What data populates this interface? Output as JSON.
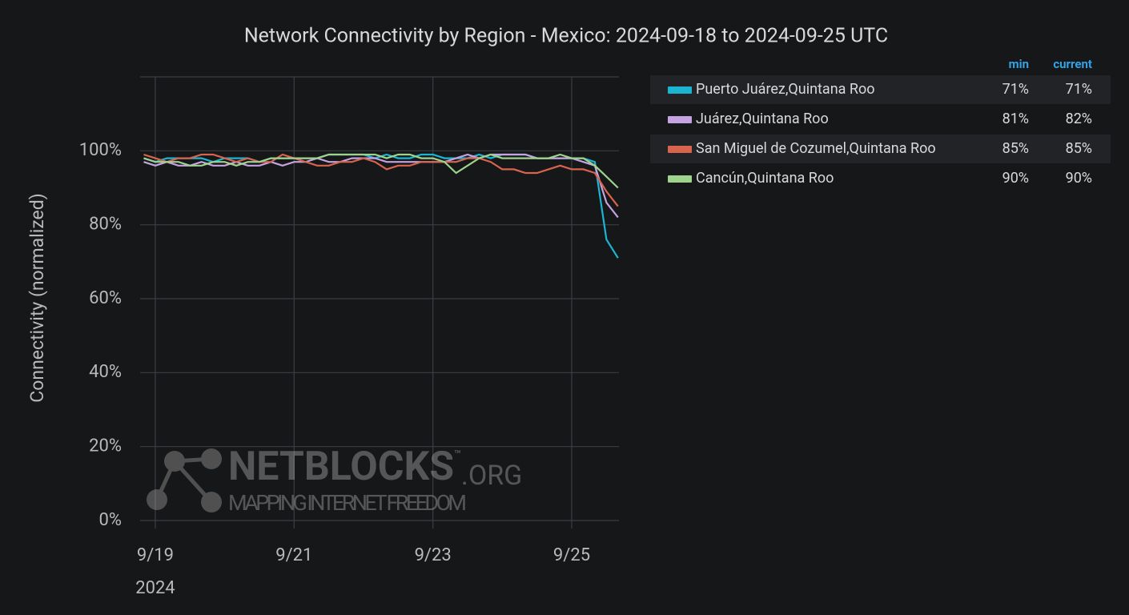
{
  "chart_data": {
    "type": "line",
    "title": "Network Connectivity by Region - Mexico: 2024-09-18 to 2024-09-25 UTC",
    "y_label": "Connectivity (normalized)",
    "x": [
      "2024-09-18T20:00",
      "2024-09-19T00:00",
      "2024-09-19T04:00",
      "2024-09-19T08:00",
      "2024-09-19T12:00",
      "2024-09-19T16:00",
      "2024-09-19T20:00",
      "2024-09-20T00:00",
      "2024-09-20T04:00",
      "2024-09-20T08:00",
      "2024-09-20T12:00",
      "2024-09-20T16:00",
      "2024-09-20T20:00",
      "2024-09-21T00:00",
      "2024-09-21T04:00",
      "2024-09-21T08:00",
      "2024-09-21T12:00",
      "2024-09-21T16:00",
      "2024-09-21T20:00",
      "2024-09-22T00:00",
      "2024-09-22T04:00",
      "2024-09-22T08:00",
      "2024-09-22T12:00",
      "2024-09-22T16:00",
      "2024-09-22T20:00",
      "2024-09-23T00:00",
      "2024-09-23T04:00",
      "2024-09-23T08:00",
      "2024-09-23T12:00",
      "2024-09-23T16:00",
      "2024-09-23T20:00",
      "2024-09-24T00:00",
      "2024-09-24T04:00",
      "2024-09-24T08:00",
      "2024-09-24T12:00",
      "2024-09-24T16:00",
      "2024-09-24T20:00",
      "2024-09-25T00:00",
      "2024-09-25T04:00",
      "2024-09-25T08:00",
      "2024-09-25T12:00",
      "2024-09-25T16:00"
    ],
    "xlim": [
      "2024-09-18T18:45",
      "2024-09-25T16:20"
    ],
    "xticks": [
      {
        "value": "2024-09-19T00:00",
        "label": "9/19"
      },
      {
        "value": "2024-09-21T00:00",
        "label": "9/21"
      },
      {
        "value": "2024-09-23T00:00",
        "label": "9/23"
      },
      {
        "value": "2024-09-25T00:00",
        "label": "9/25"
      }
    ],
    "x_year_label": "2024",
    "ylim": [
      0,
      120
    ],
    "yticks": [
      {
        "value": 0,
        "label": "0%"
      },
      {
        "value": 20,
        "label": "20%"
      },
      {
        "value": 40,
        "label": "40%"
      },
      {
        "value": 60,
        "label": "60%"
      },
      {
        "value": 80,
        "label": "80%"
      },
      {
        "value": 100,
        "label": "100%"
      }
    ],
    "grid": true,
    "legend_columns": [
      "min",
      "current"
    ],
    "series": [
      {
        "name": "Puerto Juárez,Quintana Roo",
        "color": "#1bb5d3",
        "stat_labels": [
          "71%",
          "71%"
        ],
        "values": [
          98,
          97,
          98,
          98,
          98,
          98,
          97,
          98,
          98,
          98,
          97,
          98,
          98,
          98,
          98,
          98,
          99,
          99,
          99,
          99,
          98,
          99,
          98,
          98,
          99,
          99,
          98,
          98,
          98,
          99,
          98,
          99,
          99,
          99,
          98,
          98,
          98,
          98,
          98,
          97,
          76,
          71
        ]
      },
      {
        "name": "Juárez,Quintana Roo",
        "color": "#c5a3e0",
        "stat_labels": [
          "81%",
          "82%"
        ],
        "values": [
          97,
          96,
          97,
          96,
          96,
          97,
          96,
          96,
          97,
          96,
          96,
          97,
          96,
          97,
          97,
          98,
          97,
          97,
          98,
          98,
          98,
          97,
          97,
          97,
          97,
          97,
          97,
          98,
          99,
          98,
          99,
          99,
          99,
          99,
          98,
          98,
          98,
          98,
          97,
          96,
          86,
          82
        ]
      },
      {
        "name": "San Miguel de Cozumel,Quintana Roo",
        "color": "#d8644e",
        "stat_labels": [
          "85%",
          "85%"
        ],
        "values": [
          99,
          98,
          97,
          98,
          98,
          99,
          99,
          98,
          97,
          98,
          97,
          97,
          99,
          98,
          97,
          96,
          96,
          97,
          97,
          98,
          97,
          95,
          96,
          96,
          97,
          97,
          97,
          97,
          98,
          98,
          97,
          95,
          95,
          94,
          94,
          95,
          96,
          95,
          95,
          94,
          89,
          85
        ]
      },
      {
        "name": "Cancún,Quintana Roo",
        "color": "#9ed28d",
        "stat_labels": [
          "90%",
          "90%"
        ],
        "values": [
          98,
          97,
          97,
          97,
          96,
          96,
          97,
          97,
          96,
          97,
          97,
          98,
          98,
          98,
          98,
          98,
          99,
          99,
          99,
          99,
          99,
          98,
          99,
          99,
          98,
          98,
          97,
          94,
          96,
          98,
          99,
          98,
          98,
          98,
          98,
          98,
          99,
          98,
          98,
          96,
          93,
          90
        ]
      }
    ],
    "watermark": {
      "brand": "NETBLOCKS",
      "tm": "™",
      "suffix": ".ORG",
      "tagline": "MAPPING INTERNET FREEDOM"
    }
  }
}
